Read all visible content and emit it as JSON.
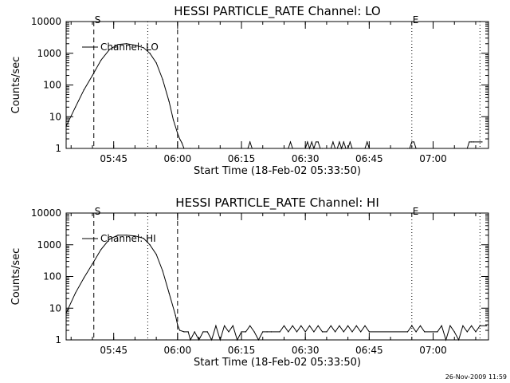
{
  "footer_timestamp": "26-Nov-2009 11:59",
  "chart_data": [
    {
      "type": "line",
      "title": "HESSI PARTICLE_RATE Channel: LO",
      "xlabel": "Start Time (18-Feb-02 05:33:50)",
      "ylabel": "Counts/sec",
      "y_scale": "log",
      "ylim": [
        1,
        10000
      ],
      "xlim": [
        "05:33:50",
        "07:13:00"
      ],
      "y_ticks": [
        "1",
        "10",
        "100",
        "1000",
        "10000"
      ],
      "x_ticks": [
        "05:45",
        "06:00",
        "06:15",
        "06:30",
        "06:45",
        "07:00"
      ],
      "legend": "Channel: LO",
      "legend_placement": "top-left",
      "markers": [
        {
          "label": "S",
          "time": "05:40:20",
          "style": "dashed"
        },
        {
          "time": "05:53:00",
          "style": "dotted"
        },
        {
          "time": "06:00:00",
          "style": "dashed"
        },
        {
          "label": "E",
          "time": "06:55:00",
          "style": "dotted"
        },
        {
          "time": "07:11:00",
          "style": "dotted"
        }
      ],
      "series": [
        {
          "name": "Channel: LO",
          "x": [
            "05:33:50",
            "05:36:00",
            "05:38:00",
            "05:40:00",
            "05:42:00",
            "05:44:00",
            "05:46:00",
            "05:48:00",
            "05:50:00",
            "05:52:00",
            "05:53:30",
            "05:55:00",
            "05:56:30",
            "05:58:00",
            "05:59:00",
            "06:00:00",
            "06:00:30",
            "06:01:00",
            "06:01:30",
            "06:03:00",
            "06:05:00",
            "06:10:00",
            "06:15:00",
            "06:16:30",
            "06:17:00",
            "06:17:30",
            "06:20:00",
            "06:25:00",
            "06:26:00",
            "06:26:30",
            "06:27:00",
            "06:30:00",
            "06:30:30",
            "06:31:00",
            "06:31:30",
            "06:32:00",
            "06:32:30",
            "06:33:00",
            "06:33:30",
            "06:34:00",
            "06:36:00",
            "06:36:30",
            "06:37:00",
            "06:37:30",
            "06:38:00",
            "06:38:30",
            "06:39:00",
            "06:39:30",
            "06:40:00",
            "06:40:30",
            "06:41:00",
            "06:44:00",
            "06:44:30",
            "06:45:00",
            "06:54:00",
            "06:54:30",
            "06:55:00",
            "06:55:30",
            "06:56:00",
            "07:08:00",
            "07:08:30",
            "07:09:00",
            "07:09:30",
            "07:11:00",
            "07:11:30"
          ],
          "values": [
            5,
            20,
            70,
            200,
            600,
            1300,
            1900,
            2000,
            1800,
            1500,
            1000,
            500,
            150,
            30,
            8,
            3,
            2,
            1.5,
            1,
            1,
            1,
            1,
            1,
            1,
            1.6,
            1,
            1,
            1,
            1,
            1.6,
            1,
            1,
            1.6,
            1,
            1.6,
            1,
            1.6,
            1.6,
            1,
            1,
            1,
            1.6,
            1,
            1,
            1.6,
            1,
            1.6,
            1,
            1,
            1.6,
            1,
            1,
            1.6,
            1,
            1,
            1,
            1.6,
            1.6,
            1,
            1,
            1.6,
            1.6,
            1.6,
            1.6,
            1.6
          ]
        }
      ]
    },
    {
      "type": "line",
      "title": "HESSI PARTICLE_RATE Channel: HI",
      "xlabel": "Start Time (18-Feb-02 05:33:50)",
      "ylabel": "Counts/sec",
      "y_scale": "log",
      "ylim": [
        1,
        10000
      ],
      "xlim": [
        "05:33:50",
        "07:13:00"
      ],
      "y_ticks": [
        "1",
        "10",
        "100",
        "1000",
        "10000"
      ],
      "x_ticks": [
        "05:45",
        "06:00",
        "06:15",
        "06:30",
        "06:45",
        "07:00"
      ],
      "legend": "Channel: HI",
      "legend_placement": "top-left",
      "markers": [
        {
          "label": "S",
          "time": "05:40:20",
          "style": "dashed"
        },
        {
          "time": "05:53:00",
          "style": "dotted"
        },
        {
          "time": "06:00:00",
          "style": "dashed"
        },
        {
          "label": "E",
          "time": "06:55:00",
          "style": "dotted"
        },
        {
          "time": "07:11:00",
          "style": "dotted"
        }
      ],
      "series": [
        {
          "name": "Channel: HI",
          "x": [
            "05:33:50",
            "05:36:00",
            "05:38:00",
            "05:40:00",
            "05:42:00",
            "05:44:00",
            "05:46:00",
            "05:48:00",
            "05:50:00",
            "05:52:00",
            "05:53:30",
            "05:55:00",
            "05:56:30",
            "05:58:00",
            "05:59:30",
            "06:00:00",
            "06:00:30",
            "06:01:30",
            "06:02:30",
            "06:03:00",
            "06:04:00",
            "06:05:00",
            "06:06:00",
            "06:07:00",
            "06:08:00",
            "06:09:00",
            "06:10:00",
            "06:11:00",
            "06:12:00",
            "06:13:00",
            "06:14:00",
            "06:15:00",
            "06:16:00",
            "06:17:00",
            "06:18:00",
            "06:19:00",
            "06:20:00",
            "06:21:00",
            "06:22:00",
            "06:24:00",
            "06:25:00",
            "06:26:00",
            "06:27:00",
            "06:28:00",
            "06:29:00",
            "06:30:00",
            "06:31:00",
            "06:32:00",
            "06:33:00",
            "06:34:00",
            "06:35:00",
            "06:36:00",
            "06:37:00",
            "06:38:00",
            "06:39:00",
            "06:40:00",
            "06:41:00",
            "06:42:00",
            "06:43:00",
            "06:44:00",
            "06:45:00",
            "06:54:00",
            "06:55:00",
            "06:56:00",
            "06:57:00",
            "06:58:00",
            "07:01:00",
            "07:02:00",
            "07:03:00",
            "07:04:00",
            "07:05:00",
            "07:06:00",
            "07:07:00",
            "07:08:00",
            "07:09:00",
            "07:10:00",
            "07:11:00",
            "07:12:30"
          ],
          "values": [
            7,
            30,
            90,
            250,
            700,
            1500,
            2000,
            2000,
            1900,
            1600,
            1000,
            500,
            150,
            30,
            6,
            3,
            2,
            1.8,
            1.8,
            1,
            1.8,
            1,
            1.8,
            1.8,
            1,
            2.8,
            1,
            2.8,
            1.8,
            2.8,
            1,
            1.8,
            1.8,
            2.8,
            1.8,
            1,
            1.8,
            1.8,
            1.8,
            1.8,
            2.8,
            1.8,
            2.8,
            1.8,
            2.8,
            1.8,
            2.8,
            1.8,
            2.8,
            1.8,
            1.8,
            2.8,
            1.8,
            2.8,
            1.8,
            2.8,
            1.8,
            2.8,
            1.8,
            2.8,
            1.8,
            1.8,
            2.8,
            1.8,
            2.8,
            1.8,
            1.8,
            2.8,
            1,
            2.8,
            1.8,
            1,
            2.8,
            1.8,
            2.8,
            1.8,
            2.8,
            2.8
          ]
        }
      ]
    }
  ]
}
